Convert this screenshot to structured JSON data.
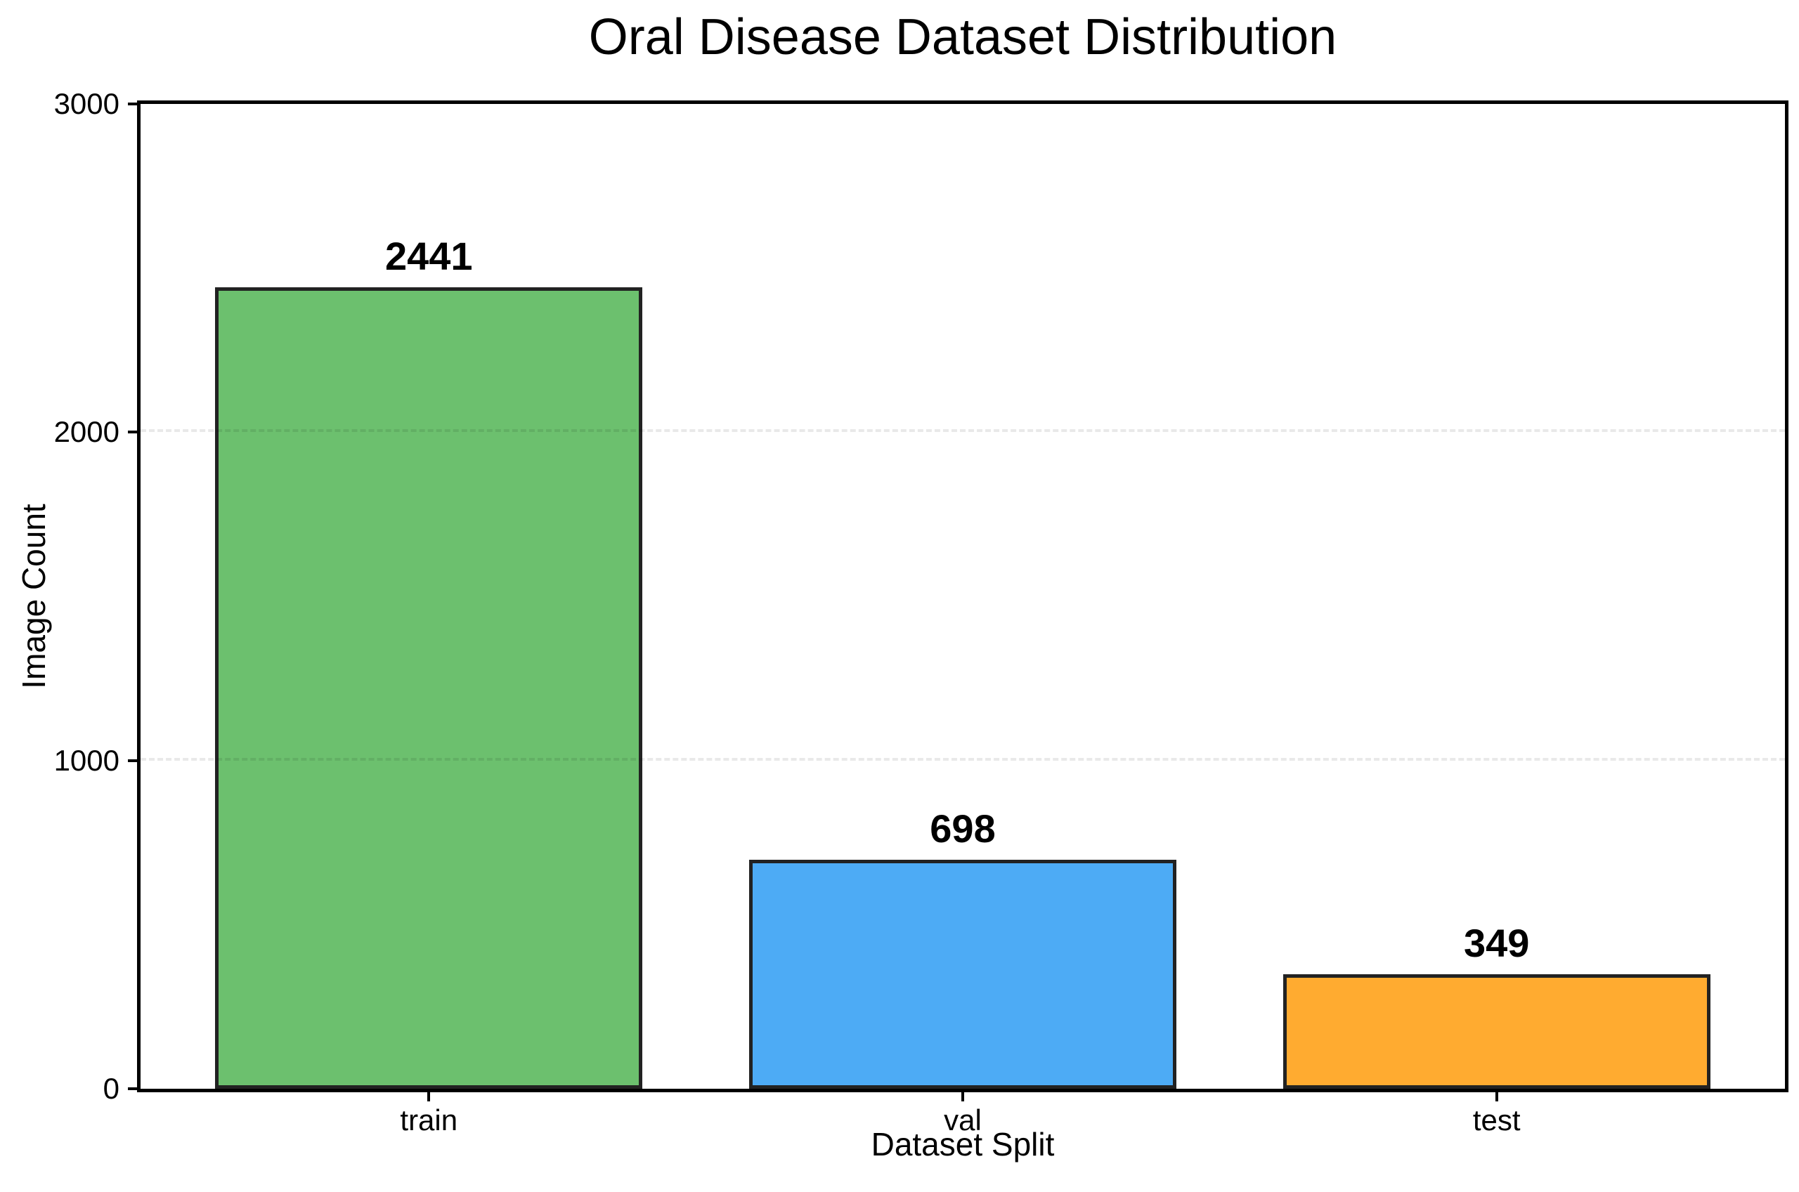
{
  "chart_data": {
    "type": "bar",
    "title": "Oral Disease Dataset Distribution",
    "xlabel": "Dataset Split",
    "ylabel": "Image Count",
    "categories": [
      "train",
      "val",
      "test"
    ],
    "values": [
      2441,
      698,
      349
    ],
    "value_labels": [
      "2441",
      "698",
      "349"
    ],
    "bar_colors": [
      "#6CC06E",
      "#4DABF5",
      "#FFAB30"
    ],
    "bar_edge_color": "#222222",
    "background_color": "#FFFFFF",
    "ylim": [
      0,
      3000
    ],
    "yticks": [
      0,
      1000,
      2000,
      3000
    ],
    "xlim": [
      -0.54,
      2.54
    ],
    "bar_width_frac": 0.8,
    "grid": {
      "levels": [
        1000,
        2000
      ],
      "style": "dashed",
      "color": "rgba(0,0,0,0.085)",
      "axis": "y"
    },
    "legend": null
  }
}
